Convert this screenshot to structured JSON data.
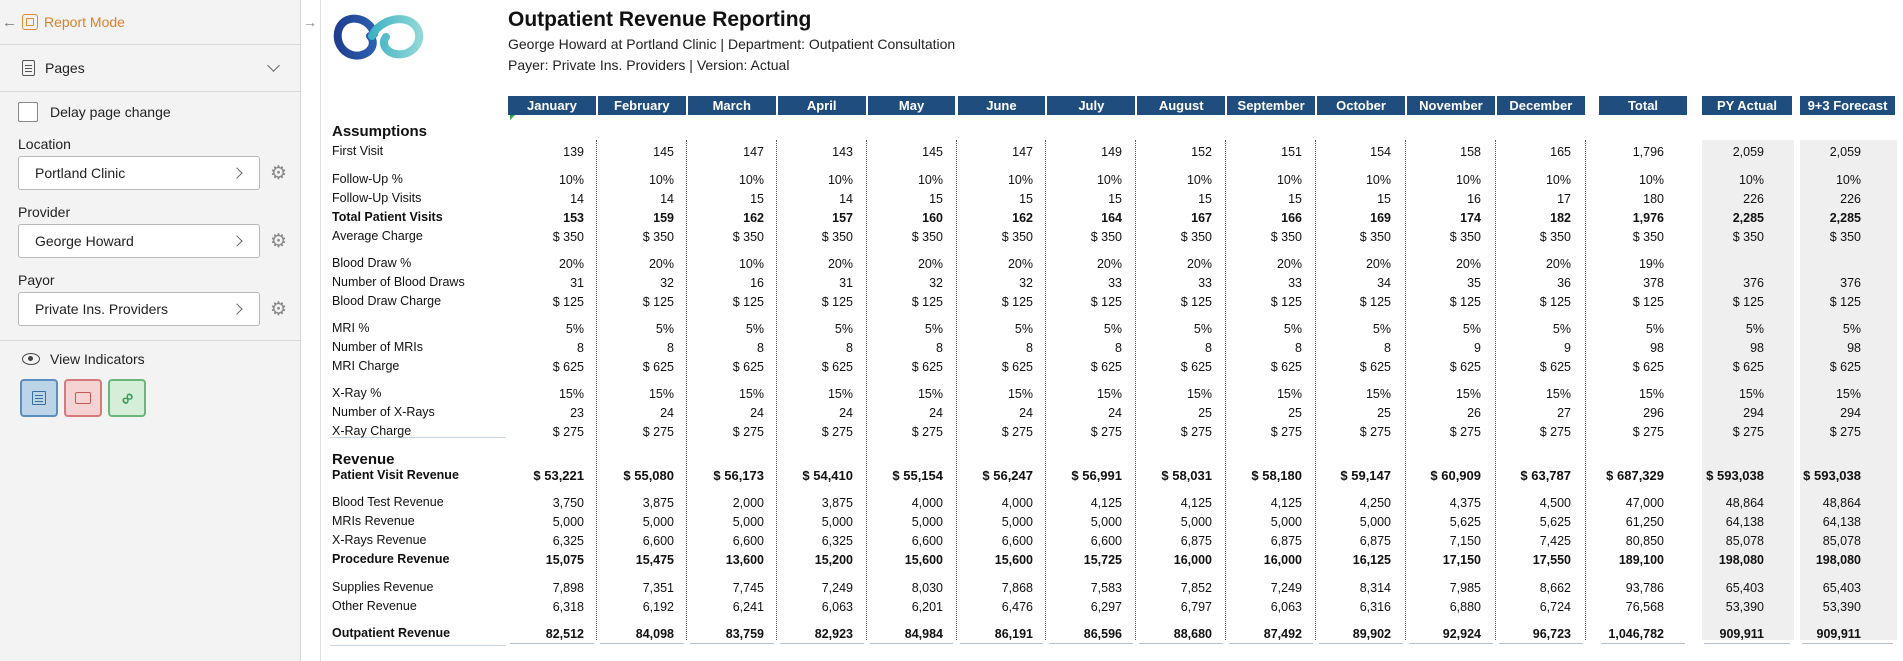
{
  "sidebar": {
    "report_mode_label": "Report Mode",
    "pages_label": "Pages",
    "delay_label": "Delay page change",
    "location": {
      "label": "Location",
      "value": "Portland Clinic"
    },
    "provider": {
      "label": "Provider",
      "value": "George Howard"
    },
    "payor": {
      "label": "Payor",
      "value": "Private Ins. Providers"
    },
    "view_indicators_label": "View Indicators"
  },
  "report": {
    "title": "Outpatient Revenue Reporting",
    "subtitle1": "George Howard at Portland Clinic | Department: Outpatient Consultation",
    "subtitle2": "Payer: Private Ins. Providers | Version: Actual",
    "columns": [
      "January",
      "February",
      "March",
      "April",
      "May",
      "June",
      "July",
      "August",
      "September",
      "October",
      "November",
      "December",
      "Total",
      "PY Actual",
      "9+3 Forecast"
    ],
    "sections": {
      "assumptions": "Assumptions",
      "revenue": "Revenue"
    },
    "rows": [
      {
        "label": "First Visit",
        "bold": false,
        "values": [
          "139",
          "145",
          "147",
          "143",
          "145",
          "147",
          "149",
          "152",
          "151",
          "154",
          "158",
          "165",
          "1,796",
          "2,059",
          "2,059"
        ]
      },
      {
        "label": "Follow-Up %",
        "bold": false,
        "values": [
          "10%",
          "10%",
          "10%",
          "10%",
          "10%",
          "10%",
          "10%",
          "10%",
          "10%",
          "10%",
          "10%",
          "10%",
          "10%",
          "10%",
          "10%"
        ]
      },
      {
        "label": "Follow-Up Visits",
        "bold": false,
        "values": [
          "14",
          "14",
          "15",
          "14",
          "15",
          "15",
          "15",
          "15",
          "15",
          "15",
          "16",
          "17",
          "180",
          "226",
          "226"
        ]
      },
      {
        "label": "Total Patient Visits",
        "bold": true,
        "values": [
          "153",
          "159",
          "162",
          "157",
          "160",
          "162",
          "164",
          "167",
          "166",
          "169",
          "174",
          "182",
          "1,976",
          "2,285",
          "2,285"
        ]
      },
      {
        "label": "Average Charge",
        "bold": false,
        "values": [
          "$ 350",
          "$ 350",
          "$ 350",
          "$ 350",
          "$ 350",
          "$ 350",
          "$ 350",
          "$ 350",
          "$ 350",
          "$ 350",
          "$ 350",
          "$ 350",
          "$ 350",
          "$ 350",
          "$ 350"
        ]
      },
      {
        "label": "Blood Draw %",
        "bold": false,
        "values": [
          "20%",
          "20%",
          "10%",
          "20%",
          "20%",
          "20%",
          "20%",
          "20%",
          "20%",
          "20%",
          "20%",
          "20%",
          "19%",
          "",
          ""
        ]
      },
      {
        "label": "Number of  Blood Draws",
        "bold": false,
        "values": [
          "31",
          "32",
          "16",
          "31",
          "32",
          "32",
          "33",
          "33",
          "33",
          "34",
          "35",
          "36",
          "378",
          "376",
          "376"
        ]
      },
      {
        "label": "Blood Draw Charge",
        "bold": false,
        "values": [
          "$ 125",
          "$ 125",
          "$ 125",
          "$ 125",
          "$ 125",
          "$ 125",
          "$ 125",
          "$ 125",
          "$ 125",
          "$ 125",
          "$ 125",
          "$ 125",
          "$ 125",
          "$ 125",
          "$ 125"
        ]
      },
      {
        "label": "MRI %",
        "bold": false,
        "values": [
          "5%",
          "5%",
          "5%",
          "5%",
          "5%",
          "5%",
          "5%",
          "5%",
          "5%",
          "5%",
          "5%",
          "5%",
          "5%",
          "5%",
          "5%"
        ]
      },
      {
        "label": "Number of MRIs",
        "bold": false,
        "values": [
          "8",
          "8",
          "8",
          "8",
          "8",
          "8",
          "8",
          "8",
          "8",
          "8",
          "9",
          "9",
          "98",
          "98",
          "98"
        ]
      },
      {
        "label": "MRI Charge",
        "bold": false,
        "values": [
          "$ 625",
          "$ 625",
          "$ 625",
          "$ 625",
          "$ 625",
          "$ 625",
          "$ 625",
          "$ 625",
          "$ 625",
          "$ 625",
          "$ 625",
          "$ 625",
          "$ 625",
          "$ 625",
          "$ 625"
        ]
      },
      {
        "label": "X-Ray %",
        "bold": false,
        "values": [
          "15%",
          "15%",
          "15%",
          "15%",
          "15%",
          "15%",
          "15%",
          "15%",
          "15%",
          "15%",
          "15%",
          "15%",
          "15%",
          "15%",
          "15%"
        ]
      },
      {
        "label": "Number of X-Rays",
        "bold": false,
        "values": [
          "23",
          "24",
          "24",
          "24",
          "24",
          "24",
          "24",
          "25",
          "25",
          "25",
          "26",
          "27",
          "296",
          "294",
          "294"
        ]
      },
      {
        "label": "X-Ray Charge",
        "bold": false,
        "values": [
          "$ 275",
          "$ 275",
          "$ 275",
          "$ 275",
          "$ 275",
          "$ 275",
          "$ 275",
          "$ 275",
          "$ 275",
          "$ 275",
          "$ 275",
          "$ 275",
          "$ 275",
          "$ 275",
          "$ 275"
        ]
      },
      {
        "label": "Patient Visit Revenue",
        "bold": true,
        "values": [
          "$ 53,221",
          "$ 55,080",
          "$ 56,173",
          "$ 54,410",
          "$ 55,154",
          "$ 56,247",
          "$ 56,991",
          "$ 58,031",
          "$ 58,180",
          "$ 59,147",
          "$ 60,909",
          "$ 63,787",
          "$ 687,329",
          "$ 593,038",
          "$ 593,038"
        ]
      },
      {
        "label": "Blood Test Revenue",
        "bold": false,
        "values": [
          "3,750",
          "3,875",
          "2,000",
          "3,875",
          "4,000",
          "4,000",
          "4,125",
          "4,125",
          "4,125",
          "4,250",
          "4,375",
          "4,500",
          "47,000",
          "48,864",
          "48,864"
        ]
      },
      {
        "label": "MRIs Revenue",
        "bold": false,
        "values": [
          "5,000",
          "5,000",
          "5,000",
          "5,000",
          "5,000",
          "5,000",
          "5,000",
          "5,000",
          "5,000",
          "5,000",
          "5,625",
          "5,625",
          "61,250",
          "64,138",
          "64,138"
        ]
      },
      {
        "label": "X-Rays Revenue",
        "bold": false,
        "values": [
          "6,325",
          "6,600",
          "6,600",
          "6,325",
          "6,600",
          "6,600",
          "6,600",
          "6,875",
          "6,875",
          "6,875",
          "7,150",
          "7,425",
          "80,850",
          "85,078",
          "85,078"
        ]
      },
      {
        "label": "Procedure Revenue",
        "bold": true,
        "values": [
          "15,075",
          "15,475",
          "13,600",
          "15,200",
          "15,600",
          "15,600",
          "15,725",
          "16,000",
          "16,000",
          "16,125",
          "17,150",
          "17,550",
          "189,100",
          "198,080",
          "198,080"
        ]
      },
      {
        "label": "Supplies Revenue",
        "bold": false,
        "values": [
          "7,898",
          "7,351",
          "7,745",
          "7,249",
          "8,030",
          "7,868",
          "7,583",
          "7,852",
          "7,249",
          "8,314",
          "7,985",
          "8,662",
          "93,786",
          "65,403",
          "65,403"
        ]
      },
      {
        "label": "Other Revenue",
        "bold": false,
        "values": [
          "6,318",
          "6,192",
          "6,241",
          "6,063",
          "6,201",
          "6,476",
          "6,297",
          "6,797",
          "6,063",
          "6,316",
          "6,880",
          "6,724",
          "76,568",
          "53,390",
          "53,390"
        ]
      },
      {
        "label": "Outpatient Revenue",
        "bold": true,
        "values": [
          "82,512",
          "84,098",
          "83,759",
          "82,923",
          "84,984",
          "86,191",
          "86,596",
          "88,680",
          "87,492",
          "89,902",
          "92,924",
          "96,723",
          "1,046,782",
          "909,911",
          "909,911"
        ]
      }
    ]
  }
}
